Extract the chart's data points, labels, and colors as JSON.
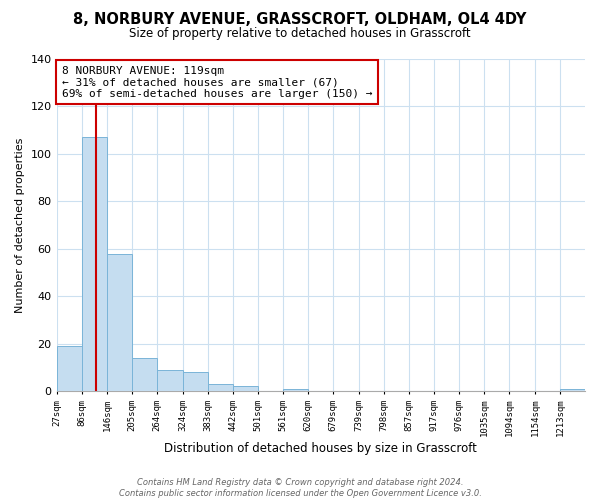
{
  "title": "8, NORBURY AVENUE, GRASSCROFT, OLDHAM, OL4 4DY",
  "subtitle": "Size of property relative to detached houses in Grasscroft",
  "bar_values": [
    19,
    107,
    58,
    14,
    9,
    8,
    3,
    2,
    0,
    1,
    0,
    0,
    0,
    0,
    0,
    0,
    0,
    0,
    0,
    0,
    1
  ],
  "bin_labels": [
    "27sqm",
    "86sqm",
    "146sqm",
    "205sqm",
    "264sqm",
    "324sqm",
    "383sqm",
    "442sqm",
    "501sqm",
    "561sqm",
    "620sqm",
    "679sqm",
    "739sqm",
    "798sqm",
    "857sqm",
    "917sqm",
    "976sqm",
    "1035sqm",
    "1094sqm",
    "1154sqm",
    "1213sqm"
  ],
  "bar_color": "#c5ddf0",
  "bar_edge_color": "#7ab4d8",
  "property_line_x": 119,
  "property_line_color": "#cc0000",
  "ylim": [
    0,
    140
  ],
  "yticks": [
    0,
    20,
    40,
    60,
    80,
    100,
    120,
    140
  ],
  "ylabel": "Number of detached properties",
  "xlabel": "Distribution of detached houses by size in Grasscroft",
  "annotation_title": "8 NORBURY AVENUE: 119sqm",
  "annotation_line1": "← 31% of detached houses are smaller (67)",
  "annotation_line2": "69% of semi-detached houses are larger (150) →",
  "annotation_box_color": "#ffffff",
  "annotation_box_edge": "#cc0000",
  "footer_line1": "Contains HM Land Registry data © Crown copyright and database right 2024.",
  "footer_line2": "Contains public sector information licensed under the Open Government Licence v3.0.",
  "background_color": "#ffffff",
  "grid_color": "#cce0f0",
  "figsize": [
    6.0,
    5.0
  ],
  "dpi": 100
}
